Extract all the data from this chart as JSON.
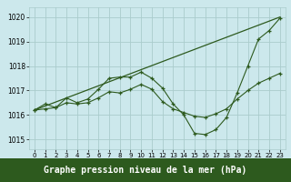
{
  "background_color": "#cce8ec",
  "grid_color": "#aacccc",
  "line_color": "#2d5a1e",
  "xlabel": "Graphe pression niveau de la mer (hPa)",
  "xlabel_fontsize": 7,
  "ylabel_values": [
    1015,
    1016,
    1017,
    1018,
    1019,
    1020
  ],
  "xlim": [
    -0.5,
    23.5
  ],
  "ylim": [
    1014.6,
    1020.4
  ],
  "xticks": [
    0,
    1,
    2,
    3,
    4,
    5,
    6,
    7,
    8,
    9,
    10,
    11,
    12,
    13,
    14,
    15,
    16,
    17,
    18,
    19,
    20,
    21,
    22,
    23
  ],
  "series1_x": [
    0,
    1,
    2,
    3,
    4,
    5,
    6,
    7,
    8,
    9,
    10,
    11,
    12,
    13,
    14,
    15,
    16,
    17,
    18,
    19,
    20,
    21,
    22,
    23
  ],
  "series1_y": [
    1016.2,
    1016.45,
    1016.3,
    1016.7,
    1016.5,
    1016.65,
    1017.05,
    1017.5,
    1017.55,
    1017.55,
    1017.75,
    1017.5,
    1017.1,
    1016.45,
    1016.0,
    1015.25,
    1015.2,
    1015.4,
    1015.9,
    1016.9,
    1018.0,
    1019.1,
    1019.45,
    1019.95
  ],
  "series2_x": [
    0,
    1,
    2,
    3,
    4,
    5,
    6,
    7,
    8,
    9,
    10,
    11,
    12,
    13,
    14,
    15,
    16,
    17,
    18,
    19,
    20,
    21,
    22,
    23
  ],
  "series2_y": [
    1016.2,
    1016.25,
    1016.3,
    1016.5,
    1016.45,
    1016.5,
    1016.7,
    1016.95,
    1016.9,
    1017.05,
    1017.25,
    1017.05,
    1016.55,
    1016.25,
    1016.1,
    1015.95,
    1015.9,
    1016.05,
    1016.25,
    1016.65,
    1017.0,
    1017.3,
    1017.5,
    1017.7
  ],
  "series3_x": [
    0,
    23
  ],
  "series3_y": [
    1016.2,
    1020.0
  ]
}
